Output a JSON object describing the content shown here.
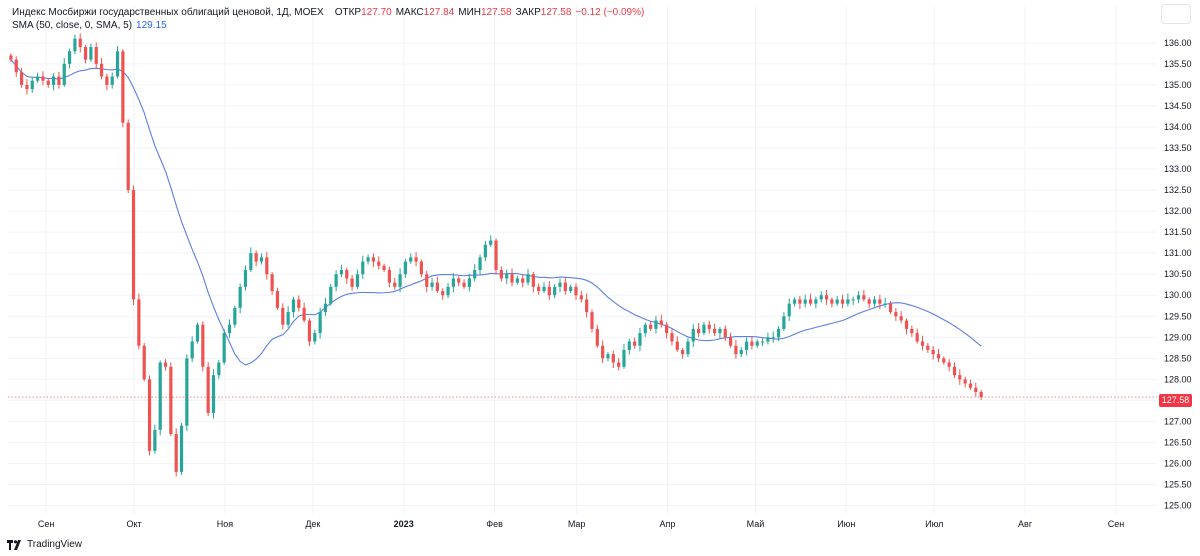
{
  "legend": {
    "title": "Индекс Мосбиржи государственных облигаций ценовой, 1Д, MOEX",
    "open_label": "ОТКР",
    "open_value": "127.70",
    "high_label": "МАКС",
    "high_value": "127.84",
    "low_label": "МИН",
    "low_value": "127.58",
    "close_label": "ЗАКР",
    "close_value": "127.58",
    "change": "−0.12 (−0.09%)",
    "sma_label": "SMA (50, close, 0, SMA, 5)",
    "sma_value": "129.15"
  },
  "last_price_label": "127.58",
  "attribution": "TradingView",
  "colors": {
    "up": "#26a69a",
    "down": "#ef5350",
    "sma": "#5b7fe6",
    "grid": "#f0f3fa",
    "axis_text": "#131722",
    "last_price": "#f23645"
  },
  "chart_data": {
    "type": "candlestick",
    "title": "Индекс Мосбиржи государственных облигаций ценовой, 1Д, MOEX",
    "ylim": [
      124.8,
      136.4
    ],
    "y_ticks": [
      "125.00",
      "125.50",
      "126.00",
      "126.50",
      "127.00",
      "127.50",
      "128.00",
      "128.50",
      "129.00",
      "129.50",
      "130.00",
      "130.50",
      "131.00",
      "131.50",
      "132.00",
      "132.50",
      "133.00",
      "133.50",
      "134.00",
      "134.50",
      "135.00",
      "135.50",
      "136.00"
    ],
    "x_ticks": [
      "Сен",
      "Окт",
      "Ноя",
      "Дек",
      "2023",
      "Фев",
      "Мар",
      "Апр",
      "Май",
      "Июн",
      "Июл",
      "Авг",
      "Сен"
    ],
    "x_tick_days": [
      0,
      30,
      61,
      91,
      122,
      153,
      181,
      212,
      242,
      273,
      303,
      334,
      365
    ],
    "x_range_days": [
      -13,
      379
    ],
    "last_price": 127.58,
    "candles_close": [
      135.6,
      135.3,
      135.0,
      134.9,
      135.1,
      135.2,
      135.1,
      135.0,
      135.2,
      135.0,
      135.5,
      135.8,
      136.1,
      135.9,
      135.6,
      135.9,
      135.5,
      135.2,
      135.0,
      135.2,
      135.8,
      134.1,
      132.5,
      129.9,
      128.8,
      128.0,
      126.3,
      126.8,
      128.4,
      128.3,
      126.7,
      125.8,
      126.9,
      128.5,
      128.9,
      129.3,
      128.3,
      127.2,
      128.1,
      128.4,
      129.1,
      129.3,
      129.7,
      130.2,
      130.6,
      131.0,
      130.8,
      130.9,
      130.5,
      130.1,
      129.7,
      129.3,
      129.6,
      129.9,
      129.7,
      129.4,
      128.9,
      129.1,
      129.6,
      129.8,
      130.2,
      130.5,
      130.6,
      130.4,
      130.2,
      130.5,
      130.8,
      130.9,
      130.8,
      130.7,
      130.6,
      130.3,
      130.2,
      130.5,
      130.8,
      130.9,
      130.8,
      130.5,
      130.2,
      130.3,
      130.1,
      130.0,
      130.2,
      130.4,
      130.3,
      130.2,
      130.4,
      130.6,
      130.9,
      131.2,
      131.3,
      130.6,
      130.4,
      130.5,
      130.3,
      130.4,
      130.3,
      130.5,
      130.2,
      130.1,
      130.2,
      130.0,
      130.2,
      130.3,
      130.1,
      130.2,
      130.0,
      129.9,
      129.6,
      129.2,
      128.8,
      128.5,
      128.6,
      128.4,
      128.3,
      128.7,
      128.9,
      128.8,
      129.1,
      129.3,
      129.2,
      129.4,
      129.3,
      129.1,
      128.9,
      128.7,
      128.6,
      128.9,
      129.2,
      129.1,
      129.3,
      129.2,
      129.1,
      129.2,
      129.0,
      128.8,
      128.6,
      128.7,
      128.9,
      128.8,
      128.9,
      128.9,
      129.0,
      129.0,
      129.2,
      129.5,
      129.8,
      129.9,
      129.8,
      129.9,
      129.8,
      129.9,
      130.0,
      129.9,
      129.8,
      129.9,
      129.8,
      129.9,
      129.9,
      130.0,
      129.9,
      129.8,
      129.9,
      129.8,
      129.8,
      129.6,
      129.5,
      129.4,
      129.2,
      129.1,
      128.9,
      128.8,
      128.7,
      128.6,
      128.5,
      128.4,
      128.3,
      128.1,
      128.0,
      127.9,
      127.8,
      127.7,
      127.58
    ],
    "series": [
      {
        "name": "SMA (50, close, 0, SMA, 5)",
        "type": "line",
        "last": 129.15
      }
    ]
  }
}
